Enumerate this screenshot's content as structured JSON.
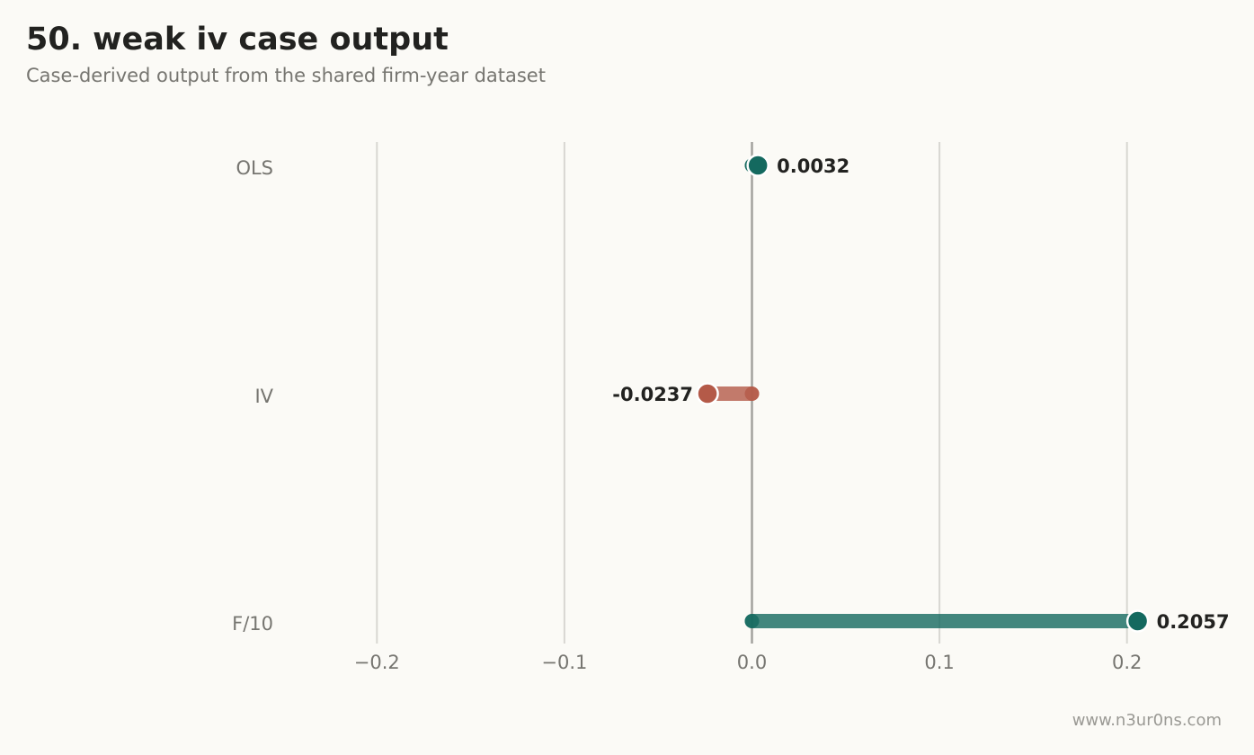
{
  "header": {
    "title": "50. weak iv case output",
    "subtitle": "Case-derived output from the shared firm-year dataset"
  },
  "footer": {
    "watermark": "www.n3ur0ns.com"
  },
  "colors": {
    "background": "#fbfaf6",
    "positive": "#14695f",
    "negative": "#b45a48",
    "grid": "#d8d7d2",
    "zero_line": "#a3a29d"
  },
  "chart_data": {
    "type": "bar",
    "orientation": "horizontal",
    "style": "lollipop",
    "categories": [
      "OLS",
      "IV",
      "F/10"
    ],
    "values": [
      0.0032,
      -0.0237,
      0.2057
    ],
    "data_labels": [
      "0.0032",
      "-0.0237",
      "0.2057"
    ],
    "xlim": [
      -0.25,
      0.25
    ],
    "xticks": [
      -0.2,
      -0.1,
      0.0,
      0.1,
      0.2
    ],
    "xtick_labels": [
      "−0.2",
      "−0.1",
      "0.0",
      "0.1",
      "0.2"
    ],
    "grid": true,
    "legend": "none"
  }
}
